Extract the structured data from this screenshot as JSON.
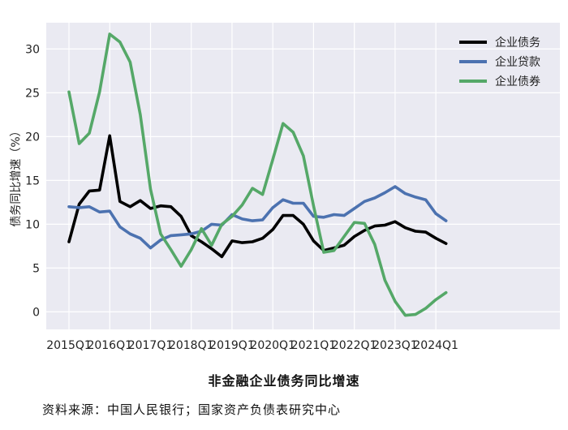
{
  "chart_data": {
    "type": "line",
    "title": "非金融企业债务同比增速",
    "ylabel": "债务同比增速（%）",
    "xlabel": "",
    "ylim": [
      -2,
      33
    ],
    "yticks": [
      0,
      5,
      10,
      15,
      20,
      25,
      30
    ],
    "x_tick_labels": [
      "2015Q1",
      "2016Q1",
      "2017Q1",
      "2018Q1",
      "2019Q1",
      "2020Q1",
      "2021Q1",
      "2022Q1",
      "2023Q1",
      "2024Q1"
    ],
    "x": [
      "2015Q1",
      "2015Q2",
      "2015Q3",
      "2015Q4",
      "2016Q1",
      "2016Q2",
      "2016Q3",
      "2016Q4",
      "2017Q1",
      "2017Q2",
      "2017Q3",
      "2017Q4",
      "2018Q1",
      "2018Q2",
      "2018Q3",
      "2018Q4",
      "2019Q1",
      "2019Q2",
      "2019Q3",
      "2019Q4",
      "2020Q1",
      "2020Q2",
      "2020Q3",
      "2020Q4",
      "2021Q1",
      "2021Q2",
      "2021Q3",
      "2021Q4",
      "2022Q1",
      "2022Q2",
      "2022Q3",
      "2022Q4",
      "2023Q1",
      "2023Q2",
      "2023Q3",
      "2023Q4",
      "2024Q1",
      "2024Q2"
    ],
    "grid": true,
    "background": "#eaeaf2",
    "legend_position": "top-right",
    "series": [
      {
        "name": "企业债务",
        "color": "#000000",
        "values": [
          8.0,
          12.3,
          13.8,
          13.9,
          20.1,
          12.6,
          12.0,
          12.7,
          11.8,
          12.1,
          12.0,
          10.9,
          8.7,
          8.0,
          7.2,
          6.3,
          8.1,
          7.9,
          8.0,
          8.4,
          9.4,
          11.0,
          11.0,
          10.0,
          8.1,
          7.0,
          7.3,
          7.6,
          8.6,
          9.3,
          9.8,
          9.9,
          10.3,
          9.6,
          9.2,
          9.1,
          8.4,
          7.8
        ]
      },
      {
        "name": "企业贷款",
        "color": "#4c72b0",
        "values": [
          12.0,
          11.9,
          12.0,
          11.4,
          11.5,
          9.7,
          8.9,
          8.4,
          7.3,
          8.2,
          8.7,
          8.8,
          8.9,
          9.2,
          10.0,
          9.9,
          11.1,
          10.6,
          10.4,
          10.5,
          11.9,
          12.8,
          12.4,
          12.4,
          10.9,
          10.8,
          11.1,
          11.0,
          11.8,
          12.6,
          13.0,
          13.6,
          14.3,
          13.5,
          13.1,
          12.8,
          11.2,
          10.4
        ]
      },
      {
        "name": "企业债券",
        "color": "#55a868",
        "values": [
          25.1,
          19.2,
          20.4,
          25.1,
          31.7,
          30.8,
          28.5,
          22.5,
          14.0,
          8.9,
          7.1,
          5.2,
          7.1,
          9.5,
          7.6,
          10.0,
          10.9,
          12.2,
          14.1,
          13.4,
          17.4,
          21.5,
          20.5,
          17.8,
          12.1,
          6.8,
          7.0,
          8.6,
          10.2,
          10.1,
          7.7,
          3.6,
          1.2,
          -0.4,
          -0.3,
          0.4,
          1.4,
          2.2
        ]
      }
    ]
  },
  "source_note": "资料来源：中国人民银行；国家资产负债表研究中心"
}
